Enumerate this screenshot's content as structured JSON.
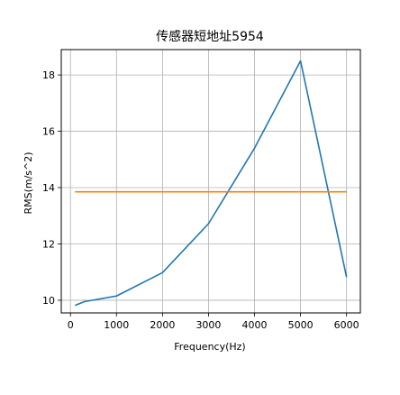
{
  "chart_data": {
    "type": "line",
    "title": "传感器短地址5954",
    "xlabel": "Frequency(Hz)",
    "ylabel": "RMS(m/s^2)",
    "xlim": [
      -200,
      6300
    ],
    "ylim": [
      9.55,
      18.9
    ],
    "xticks": [
      0,
      1000,
      2000,
      3000,
      4000,
      5000,
      6000
    ],
    "yticks": [
      10,
      12,
      14,
      16,
      18
    ],
    "grid": true,
    "series": [
      {
        "color": "#1f77b4",
        "x": [
          100,
          300,
          1000,
          2000,
          3000,
          4000,
          5000,
          6000
        ],
        "y": [
          9.82,
          9.95,
          10.15,
          10.98,
          12.72,
          15.4,
          18.5,
          10.82
        ]
      },
      {
        "color": "#ff7f0e",
        "x": [
          100,
          6000
        ],
        "y": [
          13.85,
          13.85
        ]
      }
    ]
  }
}
